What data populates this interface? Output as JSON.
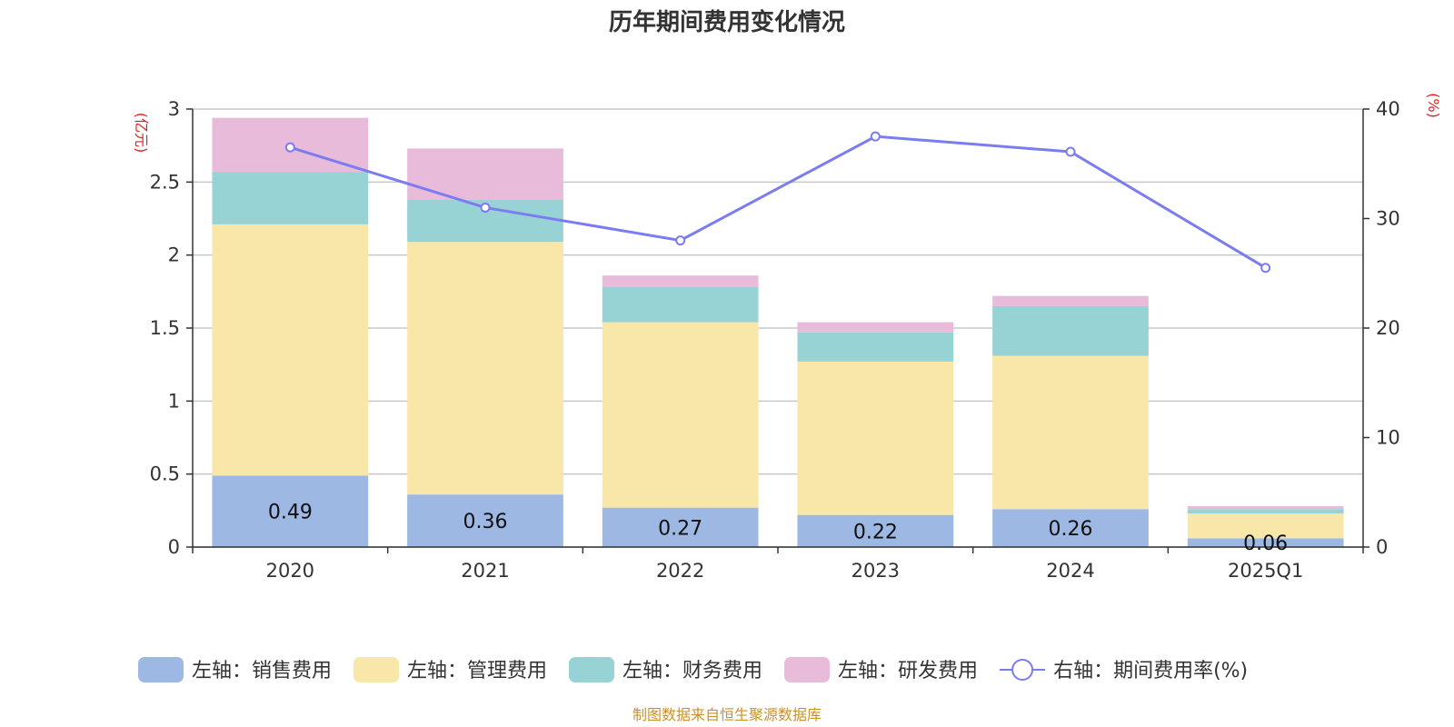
{
  "chart_data": {
    "type": "bar",
    "title": "历年期间费用变化情况",
    "categories": [
      "2020",
      "2021",
      "2022",
      "2023",
      "2024",
      "2025Q1"
    ],
    "left_axis": {
      "unit": "(亿元)",
      "ylim": [
        0,
        3
      ],
      "ticks": [
        "0",
        "0.5",
        "1",
        "1.5",
        "2",
        "2.5",
        "3"
      ]
    },
    "right_axis": {
      "unit": "(%)",
      "ylim": [
        0,
        40
      ],
      "ticks": [
        "0",
        "10",
        "20",
        "30",
        "40"
      ]
    },
    "series": [
      {
        "name": "左轴：销售费用",
        "axis": "left",
        "kind": "bar",
        "color": "#9db8e2",
        "values": [
          0.49,
          0.36,
          0.27,
          0.22,
          0.26,
          0.06
        ],
        "labels": [
          "0.49",
          "0.36",
          "0.27",
          "0.22",
          "0.26",
          "0.06"
        ]
      },
      {
        "name": "左轴：管理费用",
        "axis": "left",
        "kind": "bar",
        "color": "#f8e7a8",
        "values": [
          1.72,
          1.73,
          1.27,
          1.05,
          1.05,
          0.17
        ]
      },
      {
        "name": "左轴：财务费用",
        "axis": "left",
        "kind": "bar",
        "color": "#97d3d4",
        "values": [
          0.36,
          0.29,
          0.24,
          0.2,
          0.34,
          0.03
        ]
      },
      {
        "name": "左轴：研发费用",
        "axis": "left",
        "kind": "bar",
        "color": "#e8bbdb",
        "values": [
          0.37,
          0.35,
          0.08,
          0.07,
          0.07,
          0.02
        ]
      },
      {
        "name": "右轴：期间费用率(%)",
        "axis": "right",
        "kind": "line",
        "color": "#7b7cf0",
        "values": [
          36.5,
          31.0,
          28.0,
          37.5,
          36.1,
          25.5
        ]
      }
    ],
    "grid": true,
    "legend": "bottom",
    "unit_color": "#e02020"
  },
  "source": {
    "text": "制图数据来自恒生聚源数据库",
    "color": "#c9922a"
  }
}
